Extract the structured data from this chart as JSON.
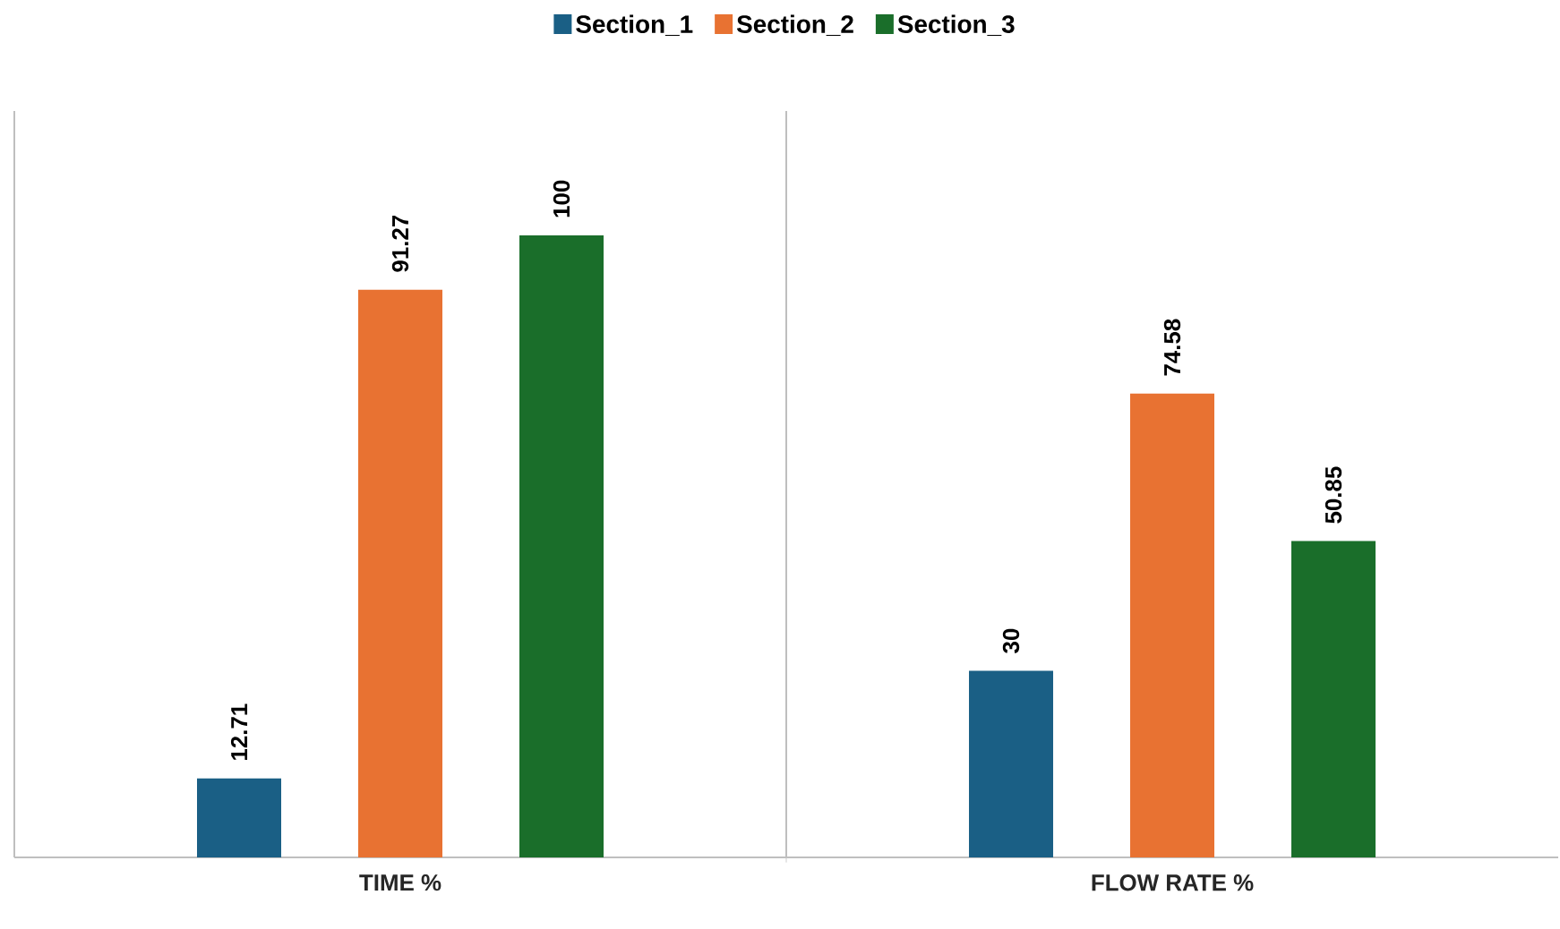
{
  "chart_data": {
    "type": "bar",
    "categories": [
      "TIME %",
      "FLOW RATE %"
    ],
    "series": [
      {
        "name": "Section_1",
        "color": "#1a5f85",
        "values": [
          12.71,
          30
        ]
      },
      {
        "name": "Section_2",
        "color": "#e87232",
        "values": [
          91.27,
          74.58
        ]
      },
      {
        "name": "Section_3",
        "color": "#1a6e2a",
        "values": [
          100,
          50.85
        ]
      }
    ],
    "ylim": [
      0,
      120
    ],
    "tick_labels": "x",
    "data_labels": true,
    "legend": "top",
    "grid": "x"
  }
}
